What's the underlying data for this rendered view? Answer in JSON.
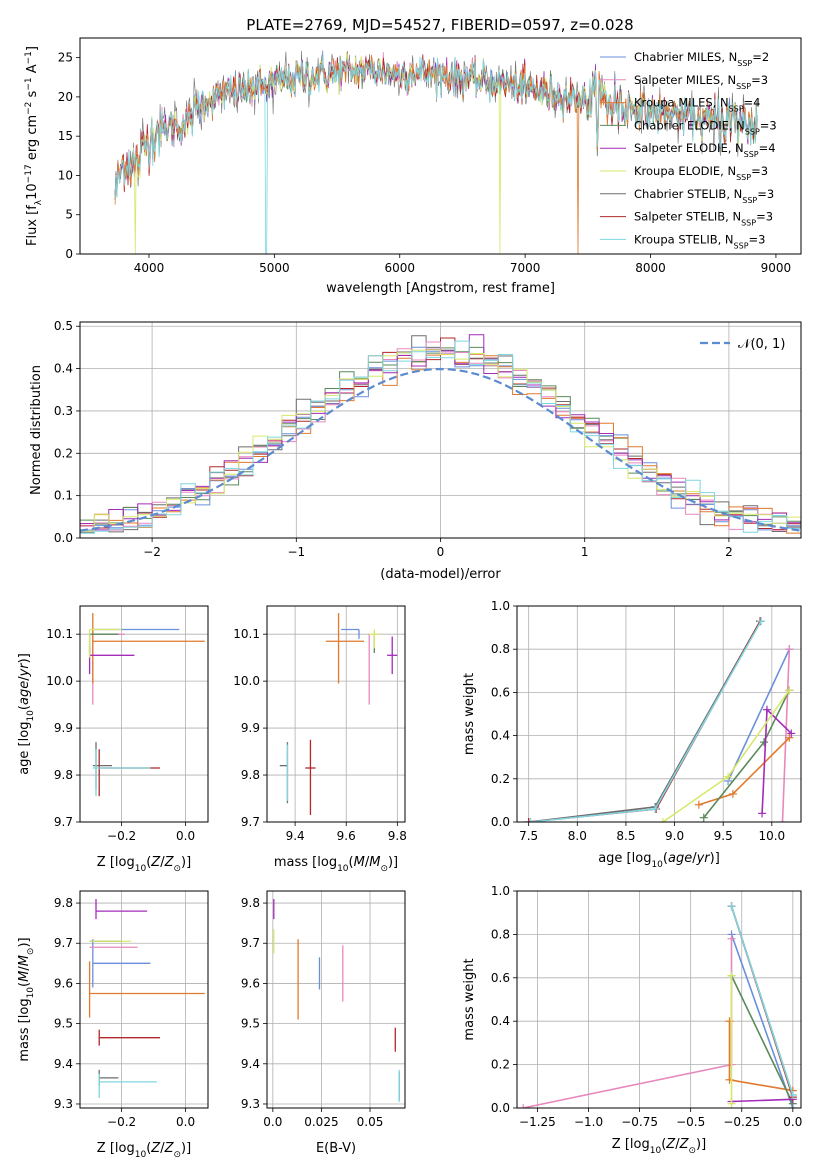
{
  "figure_title": "PLATE=2769, MJD=54527, FIBERID=0597, z=0.028",
  "models": [
    {
      "label": "Chabrier MILES, N",
      "sub": "SSP",
      "suffix": "=2",
      "color": "#6a8fdc"
    },
    {
      "label": "Salpeter MILES, N",
      "sub": "SSP",
      "suffix": "=3",
      "color": "#e888bd"
    },
    {
      "label": "Kroupa MILES, N",
      "sub": "SSP",
      "suffix": "=4",
      "color": "#e07a2e"
    },
    {
      "label": "Chabrier ELODIE, N",
      "sub": "SSP",
      "suffix": "=3",
      "color": "#5a8a5a"
    },
    {
      "label": "Salpeter ELODIE, N",
      "sub": "SSP",
      "suffix": "=4",
      "color": "#a32cb8"
    },
    {
      "label": "Kroupa ELODIE, N",
      "sub": "SSP",
      "suffix": "=3",
      "color": "#d6e86a"
    },
    {
      "label": "Chabrier STELIB, N",
      "sub": "SSP",
      "suffix": "=3",
      "color": "#6e6e6e"
    },
    {
      "label": "Salpeter STELIB, N",
      "sub": "SSP",
      "suffix": "=3",
      "color": "#b0282a"
    },
    {
      "label": "Kroupa STELIB, N",
      "sub": "SSP",
      "suffix": "=3",
      "color": "#7dd6e0"
    }
  ],
  "chart_data": [
    {
      "id": "spectrum",
      "type": "line",
      "xlabel": "wavelength [Angstrom, rest frame]",
      "ylabel": "Flux [f_λ 10^-17 erg cm^-2 s^-1 A^-1]",
      "xlim": [
        3450,
        9200
      ],
      "ylim": [
        0,
        27.5
      ],
      "xticks": [
        4000,
        5000,
        6000,
        7000,
        8000,
        9000
      ],
      "yticks": [
        0,
        5,
        10,
        15,
        20,
        25
      ],
      "x_range": [
        3730,
        8850
      ],
      "continuum_knots": [
        [
          3730,
          8
        ],
        [
          3800,
          12
        ],
        [
          3900,
          11
        ],
        [
          4000,
          15
        ],
        [
          4100,
          16
        ],
        [
          4300,
          16.5
        ],
        [
          4400,
          19
        ],
        [
          4600,
          20.5
        ],
        [
          4800,
          21
        ],
        [
          5000,
          21.8
        ],
        [
          5200,
          22.5
        ],
        [
          5500,
          23
        ],
        [
          5800,
          23.5
        ],
        [
          6000,
          23
        ],
        [
          6300,
          23
        ],
        [
          6600,
          22.2
        ],
        [
          6900,
          21.5
        ],
        [
          7200,
          20.5
        ],
        [
          7500,
          19.5
        ],
        [
          7800,
          18.8
        ],
        [
          8100,
          18
        ],
        [
          8400,
          17.2
        ],
        [
          8700,
          16.8
        ],
        [
          8850,
          16.5
        ]
      ],
      "dropouts": [
        {
          "x": 4935,
          "model": 8
        },
        {
          "x": 6800,
          "model": 5
        },
        {
          "x": 7420,
          "model": 2
        },
        {
          "x": 3890,
          "model": 5
        }
      ],
      "grid": false,
      "legend": "upper right"
    },
    {
      "id": "residuals",
      "type": "step",
      "xlabel": "(data-model)/error",
      "ylabel": "Normed distribution",
      "xlim": [
        -2.5,
        2.5
      ],
      "ylim": [
        0,
        0.51
      ],
      "xticks": [
        -2,
        -1,
        0,
        1,
        2
      ],
      "yticks": [
        0.0,
        0.1,
        0.2,
        0.3,
        0.4,
        0.5
      ],
      "bin_width": 0.1,
      "bin_start": -2.5,
      "gaussian_label": "𝒩(0, 1)",
      "gaussian_color": "#5b8bd0",
      "grid": true,
      "legend": "upper right"
    },
    {
      "id": "age_vs_Z",
      "type": "errorbar",
      "xlabel": "Z [log10(Z/Z⊙)]",
      "ylabel": "age [log10(age/yr)]",
      "xlim": [
        -0.33,
        0.07
      ],
      "ylim": [
        9.7,
        10.16
      ],
      "xticks": [
        -0.2,
        0.0
      ],
      "yticks": [
        9.7,
        9.8,
        9.9,
        10.0,
        10.1
      ],
      "points": [
        {
          "m": 0,
          "x": -0.29,
          "y": 10.11,
          "xe": [
            0.0,
            0.27
          ],
          "ye": [
            0.02,
            0.0
          ]
        },
        {
          "m": 1,
          "x": -0.29,
          "y": 10.1,
          "xe": [
            0.0,
            0.1
          ],
          "ye": [
            0.15,
            0.0
          ]
        },
        {
          "m": 2,
          "x": -0.29,
          "y": 10.085,
          "xe": [
            0.0,
            0.35
          ],
          "ye": [
            0.09,
            0.06
          ]
        },
        {
          "m": 3,
          "x": -0.3,
          "y": 10.1,
          "xe": [
            0.0,
            0.09
          ],
          "ye": [
            0.04,
            0.0
          ]
        },
        {
          "m": 4,
          "x": -0.3,
          "y": 10.055,
          "xe": [
            0.0,
            0.14
          ],
          "ye": [
            0.04,
            0.02
          ]
        },
        {
          "m": 5,
          "x": -0.3,
          "y": 10.11,
          "xe": [
            0.0,
            0.1
          ],
          "ye": [
            0.06,
            0.0
          ]
        },
        {
          "m": 6,
          "x": -0.28,
          "y": 9.82,
          "xe": [
            0.01,
            0.05
          ],
          "ye": [
            0.05,
            0.05
          ]
        },
        {
          "m": 7,
          "x": -0.27,
          "y": 9.815,
          "xe": [
            0.0,
            0.19
          ],
          "ye": [
            0.06,
            0.04
          ]
        },
        {
          "m": 8,
          "x": -0.28,
          "y": 9.815,
          "xe": [
            0.01,
            0.17
          ],
          "ye": [
            0.06,
            0.04
          ]
        }
      ],
      "grid": true
    },
    {
      "id": "age_vs_mass",
      "type": "errorbar",
      "xlabel": "mass [log10(M/M⊙)]",
      "ylabel": "",
      "xlim": [
        9.29,
        9.83
      ],
      "ylim": [
        9.7,
        10.16
      ],
      "xticks": [
        9.4,
        9.6,
        9.8
      ],
      "yticks": [
        9.7,
        9.8,
        9.9,
        10.0,
        10.1
      ],
      "points": [
        {
          "m": 0,
          "x": 9.65,
          "y": 10.11,
          "xe": [
            0.07,
            0.0
          ],
          "ye": [
            0.02,
            0.0
          ]
        },
        {
          "m": 1,
          "x": 9.69,
          "y": 10.1,
          "xe": [
            0.0,
            0.0
          ],
          "ye": [
            0.15,
            0.0
          ]
        },
        {
          "m": 2,
          "x": 9.57,
          "y": 10.085,
          "xe": [
            0.05,
            0.1
          ],
          "ye": [
            0.09,
            0.06
          ]
        },
        {
          "m": 3,
          "x": 9.71,
          "y": 10.1,
          "xe": [
            0.0,
            0.0
          ],
          "ye": [
            0.04,
            0.0
          ]
        },
        {
          "m": 4,
          "x": 9.78,
          "y": 10.055,
          "xe": [
            0.02,
            0.02
          ],
          "ye": [
            0.04,
            0.04
          ]
        },
        {
          "m": 5,
          "x": 9.71,
          "y": 10.1,
          "xe": [
            0.02,
            0.02
          ],
          "ye": [
            0.03,
            0.01
          ]
        },
        {
          "m": 6,
          "x": 9.37,
          "y": 9.82,
          "xe": [
            0.03,
            0.0
          ],
          "ye": [
            0.08,
            0.05
          ]
        },
        {
          "m": 7,
          "x": 9.46,
          "y": 9.815,
          "xe": [
            0.02,
            0.02
          ],
          "ye": [
            0.1,
            0.06
          ]
        },
        {
          "m": 8,
          "x": 9.37,
          "y": 9.815,
          "xe": [
            0.0,
            0.0
          ],
          "ye": [
            0.07,
            0.05
          ]
        }
      ],
      "grid": true
    },
    {
      "id": "weight_vs_age",
      "type": "line",
      "xlabel": "age [log10(age/yr)]",
      "ylabel": "mass weight",
      "xlim": [
        7.38,
        10.3
      ],
      "ylim": [
        0,
        1
      ],
      "xticks": [
        7.5,
        8.0,
        8.5,
        9.0,
        9.5,
        10.0
      ],
      "yticks": [
        0.0,
        0.2,
        0.4,
        0.6,
        0.8,
        1.0
      ],
      "series": [
        {
          "m": 0,
          "x": [
            9.55,
            10.18
          ],
          "y": [
            0.19,
            0.8
          ]
        },
        {
          "m": 1,
          "x": [
            10.11,
            10.18
          ],
          "y": [
            0.0,
            0.8
          ]
        },
        {
          "m": 2,
          "x": [
            9.25,
            9.6,
            10.18
          ],
          "y": [
            0.08,
            0.13,
            0.39
          ]
        },
        {
          "m": 3,
          "x": [
            9.3,
            9.92,
            10.18
          ],
          "y": [
            0.02,
            0.37,
            0.61
          ]
        },
        {
          "m": 4,
          "x": [
            9.9,
            9.95,
            10.2
          ],
          "y": [
            0.04,
            0.52,
            0.41
          ]
        },
        {
          "m": 5,
          "x": [
            8.88,
            9.55,
            10.18
          ],
          "y": [
            0.0,
            0.21,
            0.61
          ]
        },
        {
          "m": 6,
          "x": [
            7.5,
            8.8,
            9.88
          ],
          "y": [
            0.0,
            0.07,
            0.93
          ]
        },
        {
          "m": 7,
          "x": [
            7.5,
            8.81,
            9.88
          ],
          "y": [
            0.0,
            0.06,
            0.93
          ]
        },
        {
          "m": 8,
          "x": [
            7.52,
            8.8,
            9.89
          ],
          "y": [
            0.0,
            0.06,
            0.93
          ]
        }
      ],
      "grid": true
    },
    {
      "id": "mass_vs_Z",
      "type": "errorbar",
      "xlabel": "Z [log10(Z/Z⊙)]",
      "ylabel": "mass [log10(M/M⊙)]",
      "xlim": [
        -0.33,
        0.07
      ],
      "ylim": [
        9.29,
        9.83
      ],
      "xticks": [
        -0.2,
        0.0
      ],
      "yticks": [
        9.3,
        9.4,
        9.5,
        9.6,
        9.7,
        9.8
      ],
      "points": [
        {
          "m": 0,
          "x": -0.29,
          "y": 9.65,
          "xe": [
            0.0,
            0.18
          ],
          "ye": [
            0.06,
            0.06
          ]
        },
        {
          "m": 1,
          "x": -0.3,
          "y": 9.69,
          "xe": [
            0.0,
            0.15
          ],
          "ye": [
            0.0,
            0.0
          ]
        },
        {
          "m": 2,
          "x": -0.3,
          "y": 9.575,
          "xe": [
            0.0,
            0.36
          ],
          "ye": [
            0.06,
            0.08
          ]
        },
        {
          "m": 3,
          "x": -0.3,
          "y": 9.705,
          "xe": [
            0.0,
            0.1
          ],
          "ye": [
            0.0,
            0.0
          ]
        },
        {
          "m": 4,
          "x": -0.28,
          "y": 9.78,
          "xe": [
            0.0,
            0.16
          ],
          "ye": [
            0.02,
            0.03
          ]
        },
        {
          "m": 5,
          "x": -0.3,
          "y": 9.705,
          "xe": [
            0.0,
            0.13
          ],
          "ye": [
            0.0,
            0.0
          ]
        },
        {
          "m": 6,
          "x": -0.27,
          "y": 9.365,
          "xe": [
            0.0,
            0.06
          ],
          "ye": [
            0.02,
            0.02
          ]
        },
        {
          "m": 7,
          "x": -0.27,
          "y": 9.465,
          "xe": [
            0.0,
            0.19
          ],
          "ye": [
            0.02,
            0.02
          ]
        },
        {
          "m": 8,
          "x": -0.27,
          "y": 9.355,
          "xe": [
            0.0,
            0.18
          ],
          "ye": [
            0.04,
            0.02
          ]
        }
      ],
      "grid": true
    },
    {
      "id": "mass_vs_ebv",
      "type": "errorbar",
      "xlabel": "E(B-V)",
      "ylabel": "",
      "xlim": [
        -0.003,
        0.068
      ],
      "ylim": [
        9.29,
        9.83
      ],
      "xticks": [
        0.0,
        0.025,
        0.05
      ],
      "yticks": [
        9.3,
        9.4,
        9.5,
        9.6,
        9.7,
        9.8
      ],
      "points": [
        {
          "m": 0,
          "x": 0.024,
          "y": 9.625,
          "xe": [
            0.0,
            0.0
          ],
          "ye": [
            0.04,
            0.04
          ]
        },
        {
          "m": 1,
          "x": 0.036,
          "y": 9.625,
          "xe": [
            0.0,
            0.0
          ],
          "ye": [
            0.07,
            0.07
          ]
        },
        {
          "m": 2,
          "x": 0.013,
          "y": 9.6,
          "xe": [
            0.0,
            0.0
          ],
          "ye": [
            0.09,
            0.11
          ]
        },
        {
          "m": 3,
          "x": 0.0005,
          "y": 9.705,
          "xe": [
            0.0,
            0.0
          ],
          "ye": [
            0.0,
            0.0
          ]
        },
        {
          "m": 4,
          "x": 0.0005,
          "y": 9.78,
          "xe": [
            0.0,
            0.0
          ],
          "ye": [
            0.02,
            0.03
          ]
        },
        {
          "m": 5,
          "x": 0.0005,
          "y": 9.705,
          "xe": [
            0.0,
            0.0
          ],
          "ye": [
            0.03,
            0.03
          ]
        },
        {
          "m": 6,
          "x": 0.065,
          "y": 9.34,
          "xe": [
            0.0,
            0.0
          ],
          "ye": [
            0.03,
            0.04
          ]
        },
        {
          "m": 7,
          "x": 0.063,
          "y": 9.46,
          "xe": [
            0.0,
            0.0
          ],
          "ye": [
            0.03,
            0.03
          ]
        },
        {
          "m": 8,
          "x": 0.065,
          "y": 9.345,
          "xe": [
            0.0,
            0.0
          ],
          "ye": [
            0.04,
            0.04
          ]
        }
      ],
      "grid": true
    },
    {
      "id": "weight_vs_Z",
      "type": "line",
      "xlabel": "Z [log10(Z/Z⊙)]",
      "ylabel": "mass weight",
      "xlim": [
        -1.35,
        0.04
      ],
      "ylim": [
        0,
        1
      ],
      "xticks": [
        -1.25,
        -1.0,
        -0.75,
        -0.5,
        -0.25,
        0.0
      ],
      "yticks": [
        0.0,
        0.2,
        0.4,
        0.6,
        0.8,
        1.0
      ],
      "series": [
        {
          "m": 0,
          "x": [
            -0.3,
            0.0
          ],
          "y": [
            0.8,
            0.0
          ]
        },
        {
          "m": 1,
          "x": [
            -1.32,
            -0.3,
            -0.3
          ],
          "y": [
            0.0,
            0.2,
            0.78
          ]
        },
        {
          "m": 2,
          "x": [
            -0.31,
            -0.31,
            0.0
          ],
          "y": [
            0.4,
            0.13,
            0.08
          ]
        },
        {
          "m": 3,
          "x": [
            -0.3,
            0.0
          ],
          "y": [
            0.61,
            0.02
          ]
        },
        {
          "m": 4,
          "x": [
            -0.3,
            0.0
          ],
          "y": [
            0.03,
            0.04
          ]
        },
        {
          "m": 5,
          "x": [
            -0.3,
            -0.3
          ],
          "y": [
            0.02,
            0.61
          ]
        },
        {
          "m": 6,
          "x": [
            -0.3,
            0.0
          ],
          "y": [
            0.93,
            0.06
          ]
        },
        {
          "m": 7,
          "x": [
            -0.3,
            0.0
          ],
          "y": [
            0.93,
            0.05
          ]
        },
        {
          "m": 8,
          "x": [
            -0.3,
            0.0
          ],
          "y": [
            0.93,
            0.06
          ]
        }
      ],
      "grid": true
    }
  ]
}
